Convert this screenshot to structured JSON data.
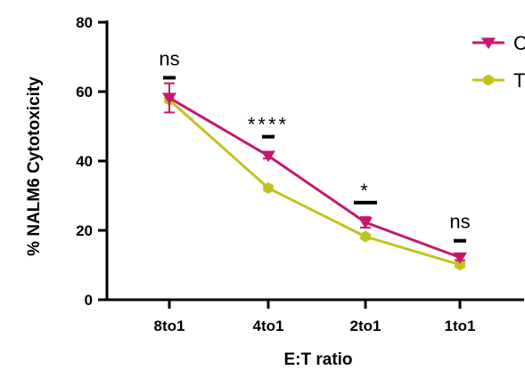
{
  "chart_data": {
    "type": "line",
    "title": "",
    "xlabel": "E:T ratio",
    "ylabel": "% NALM6 Cytotoxicity",
    "categories": [
      "8to1",
      "4to1",
      "2to1",
      "1to1"
    ],
    "ylim": [
      0,
      80
    ],
    "yticks": [
      0,
      20,
      40,
      60,
      80
    ],
    "grid": false,
    "legend_position": "top-right",
    "series": [
      {
        "name": "C",
        "color": "#c8176e",
        "marker": "triangle-down",
        "values": [
          58.2,
          41.5,
          22.3,
          12.2
        ],
        "errors": [
          4.2,
          0.8,
          1.5,
          0.8
        ]
      },
      {
        "name": "T",
        "color": "#c3c21c",
        "marker": "hexagon",
        "values": [
          57.6,
          32.2,
          18.2,
          10.1
        ],
        "errors": [
          0.6,
          0.5,
          0.5,
          0.5
        ]
      }
    ],
    "annotations": [
      {
        "category": "8to1",
        "text": "ns",
        "y": 64
      },
      {
        "category": "4to1",
        "text": "****",
        "y": 47
      },
      {
        "category": "2to1",
        "text": "*",
        "y": 28
      },
      {
        "category": "1to1",
        "text": "ns",
        "y": 17
      }
    ]
  }
}
